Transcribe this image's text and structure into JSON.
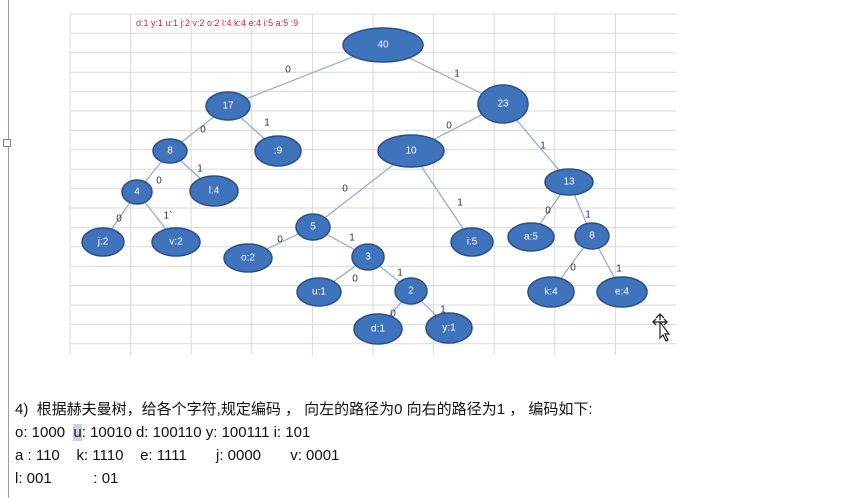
{
  "colors": {
    "node_fill": "#3f74bd",
    "node_stroke": "#2a4f85",
    "edge": "#8aaad6",
    "grid": "#d9d9d9",
    "legend": "#e8202a",
    "highlight": "#c5d3e6"
  },
  "freq_legend": "d:1 y:1 u:1 j:2  v:2  o:2  l:4  k:4  e:4 i:5  a:5   :9",
  "tree": {
    "nodes": [
      {
        "id": "n40",
        "label": "40"
      },
      {
        "id": "n17",
        "label": "17"
      },
      {
        "id": "n23",
        "label": "23"
      },
      {
        "id": "n8a",
        "label": "8"
      },
      {
        "id": "nsp",
        "label": ":9"
      },
      {
        "id": "n10",
        "label": "10"
      },
      {
        "id": "n13",
        "label": "13"
      },
      {
        "id": "n4",
        "label": "4"
      },
      {
        "id": "nl",
        "label": "l:4"
      },
      {
        "id": "nj",
        "label": "j:2"
      },
      {
        "id": "nv",
        "label": "v:2"
      },
      {
        "id": "n5",
        "label": "5"
      },
      {
        "id": "ni",
        "label": "i:5"
      },
      {
        "id": "na",
        "label": "a:5"
      },
      {
        "id": "n8b",
        "label": "8"
      },
      {
        "id": "no",
        "label": "o:2"
      },
      {
        "id": "n3",
        "label": "3"
      },
      {
        "id": "nk",
        "label": "k:4"
      },
      {
        "id": "ne",
        "label": "e:4"
      },
      {
        "id": "nu",
        "label": "u:1"
      },
      {
        "id": "n2",
        "label": "2"
      },
      {
        "id": "nd",
        "label": "d:1"
      },
      {
        "id": "ny",
        "label": "y:1"
      }
    ],
    "edges": [
      {
        "from": "n40",
        "to": "n17",
        "label": "0"
      },
      {
        "from": "n40",
        "to": "n23",
        "label": "1"
      },
      {
        "from": "n17",
        "to": "n8a",
        "label": "0"
      },
      {
        "from": "n17",
        "to": "nsp",
        "label": "1"
      },
      {
        "from": "n23",
        "to": "n10",
        "label": "0"
      },
      {
        "from": "n23",
        "to": "n13",
        "label": "1"
      },
      {
        "from": "n8a",
        "to": "n4",
        "label": "0"
      },
      {
        "from": "n8a",
        "to": "nl",
        "label": "1"
      },
      {
        "from": "n4",
        "to": "nj",
        "label": "0"
      },
      {
        "from": "n4",
        "to": "nv",
        "label": "1`"
      },
      {
        "from": "n10",
        "to": "n5",
        "label": "0"
      },
      {
        "from": "n10",
        "to": "ni",
        "label": "1"
      },
      {
        "from": "n13",
        "to": "na",
        "label": "0"
      },
      {
        "from": "n13",
        "to": "n8b",
        "label": "1"
      },
      {
        "from": "n5",
        "to": "no",
        "label": "0"
      },
      {
        "from": "n5",
        "to": "n3",
        "label": "1"
      },
      {
        "from": "n8b",
        "to": "nk",
        "label": "0"
      },
      {
        "from": "n8b",
        "to": "ne",
        "label": "1"
      },
      {
        "from": "n3",
        "to": "nu",
        "label": "0"
      },
      {
        "from": "n3",
        "to": "n2",
        "label": "1"
      },
      {
        "from": "n2",
        "to": "nd",
        "label": "0"
      },
      {
        "from": "n2",
        "to": "ny",
        "label": "1"
      }
    ]
  },
  "text": {
    "heading": "4)  根据赫夫曼树，给各个字符,规定编码 ， 向左的路径为0 向右的路径为1 ， 编码如下:",
    "line1": {
      "o": "o: 1000  ",
      "u_char": "u",
      "u_code": ": 10010 ",
      "d": "d: 100110 ",
      "y": "y: 100111 ",
      "i": "i: 101"
    },
    "line2": {
      "a": "a : 110    ",
      "k": "k: 1110    ",
      "e": "e: 1111       ",
      "j": "j: 0000       ",
      "v": "v: 0001"
    },
    "line3": {
      "l": "l: 001          ",
      "space": ": 01"
    }
  },
  "icons": {
    "cursor": "move-cursor-icon"
  }
}
